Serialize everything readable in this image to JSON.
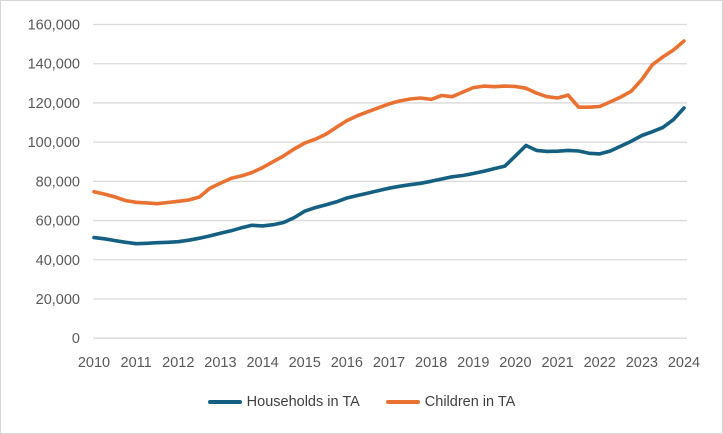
{
  "chart_data": {
    "type": "line",
    "title": "",
    "xlabel": "",
    "ylabel": "",
    "x_tick_labels": [
      "2010",
      "2011",
      "2012",
      "2013",
      "2014",
      "2015",
      "2016",
      "2017",
      "2018",
      "2019",
      "2020",
      "2021",
      "2022",
      "2023",
      "2024"
    ],
    "x_unit": "year (quarterly data points, 2010 Q1 to 2024 Q1)",
    "ylim": [
      0,
      160000
    ],
    "y_tick_step": 20000,
    "y_tick_labels": [
      "0",
      "20,000",
      "40,000",
      "60,000",
      "80,000",
      "100,000",
      "120,000",
      "140,000",
      "160,000"
    ],
    "grid": true,
    "legend_position": "bottom",
    "series": [
      {
        "name": "Households in TA",
        "color": "#156082",
        "values": [
          51300,
          50700,
          49800,
          48900,
          48200,
          48400,
          48700,
          48900,
          49200,
          50000,
          51000,
          52200,
          53500,
          54800,
          56300,
          57600,
          57300,
          57900,
          59000,
          61500,
          64800,
          66600,
          68000,
          69500,
          71500,
          72800,
          74000,
          75300,
          76500,
          77500,
          78300,
          79000,
          80000,
          81200,
          82300,
          83000,
          84000,
          85200,
          86500,
          87800,
          93000,
          98300,
          95800,
          95300,
          95400,
          95800,
          95500,
          94300,
          94000,
          95500,
          98000,
          100500,
          103400,
          105300,
          107500,
          111500,
          117400
        ]
      },
      {
        "name": "Children in TA",
        "color": "#E97132",
        "values": [
          74700,
          73500,
          72000,
          70200,
          69300,
          69000,
          68600,
          69200,
          69800,
          70500,
          72000,
          76500,
          79000,
          81500,
          82800,
          84500,
          87000,
          90000,
          93000,
          96500,
          99500,
          101500,
          104000,
          107500,
          111000,
          113500,
          115500,
          117500,
          119500,
          121000,
          122000,
          122500,
          121800,
          123800,
          123200,
          125500,
          127800,
          128600,
          128300,
          128600,
          128400,
          127500,
          125000,
          123200,
          122500,
          124000,
          117800,
          117800,
          118200,
          120500,
          123000,
          126000,
          132000,
          139500,
          143500,
          147000,
          151600
        ]
      }
    ],
    "colors": {
      "gridline": "#d9d9d9",
      "tick_label": "#595959",
      "legend_label": "#404040",
      "background": "#ffffff"
    }
  }
}
